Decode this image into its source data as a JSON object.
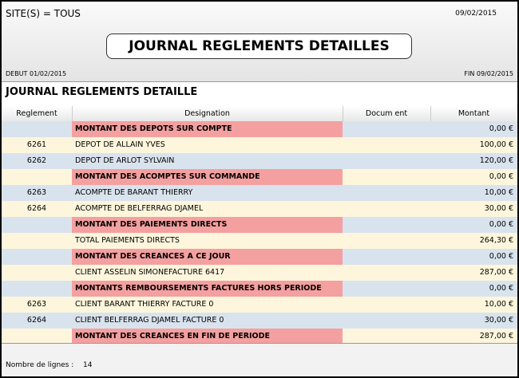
{
  "header": {
    "site": "SITE(S) = TOUS",
    "date": "09/02/2015",
    "title": "JOURNAL REGLEMENTS DETAILLES",
    "start": "DEBUT 01/02/2015",
    "end": "FIN 09/02/2015"
  },
  "report_title": "JOURNAL REGLEMENTS DETAILLE",
  "table": {
    "columns": [
      "Reglement",
      "Designation",
      "Docum ent",
      "Montant"
    ],
    "rows": [
      {
        "designation": "MONTANT DES DEPOTS SUR COMPTE",
        "amount": "0,00 €",
        "section": true
      },
      {
        "reglement": "6261",
        "designation": "DEPOT DE ALLAIN YVES",
        "amount": "100,00 €"
      },
      {
        "reglement": "6262",
        "designation": "DEPOT DE ARLOT SYLVAIN",
        "amount": "120,00 €"
      },
      {
        "designation": "MONTANT DES ACOMPTES SUR COMMANDE",
        "amount": "0,00 €",
        "section": true
      },
      {
        "reglement": "6263",
        "designation": "ACOMPTE DE BARANT THIERRY",
        "amount": "10,00 €"
      },
      {
        "reglement": "6264",
        "designation": "ACOMPTE DE BELFERRAG DJAMEL",
        "amount": "30,00 €"
      },
      {
        "designation": "MONTANT DES PAIEMENTS DIRECTS",
        "amount": "0,00 €",
        "section": true
      },
      {
        "designation": "TOTAL PAIEMENTS DIRECTS",
        "amount": "264,30 €"
      },
      {
        "designation": "MONTANT DES CREANCES A CE JOUR",
        "amount": "0,00 €",
        "section": true
      },
      {
        "designation": "CLIENT ASSELIN SIMONEFACTURE 6417",
        "amount": "287,00 €"
      },
      {
        "designation": "MONTANTS REMBOURSEMENTS FACTURES HORS PERIODE",
        "amount": "0,00 €",
        "section": true
      },
      {
        "reglement": "6263",
        "designation": "CLIENT BARANT THIERRY FACTURE 0",
        "amount": "10,00 €"
      },
      {
        "reglement": "6264",
        "designation": "CLIENT BELFERRAG DJAMEL FACTURE 0",
        "amount": "30,00 €"
      },
      {
        "designation": "MONTANT DES CREANCES EN FIN DE PERIODE",
        "amount": "287,00 €",
        "section": true
      }
    ]
  },
  "footer": {
    "label": "Nombre de lignes :",
    "count": "14"
  }
}
